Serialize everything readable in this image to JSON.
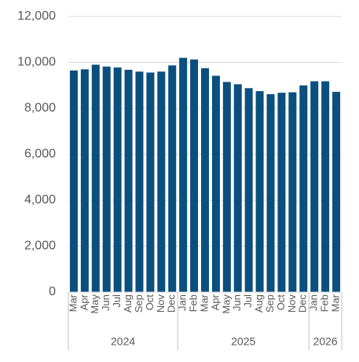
{
  "chart_data": {
    "type": "bar",
    "color": "#0b4f7f",
    "groups": [
      {
        "label": "2024",
        "categories": [
          "Mar",
          "Apr",
          "May",
          "Jun",
          "Jul",
          "Aug",
          "Sep",
          "Oct",
          "Nov",
          "Dec"
        ]
      },
      {
        "label": "2025",
        "categories": [
          "Jan",
          "Feb",
          "Mar",
          "Apr",
          "May",
          "Jun",
          "Jul",
          "Aug",
          "Sep",
          "Oct",
          "Nov",
          "Dec"
        ]
      },
      {
        "label": "2026",
        "categories": [
          "Jan",
          "Feb",
          "Mar"
        ]
      }
    ],
    "values": [
      9650,
      9700,
      9900,
      9820,
      9780,
      9680,
      9600,
      9560,
      9600,
      9870,
      10200,
      10130,
      9750,
      9420,
      9150,
      9050,
      8880,
      8750,
      8620,
      8680,
      8700,
      9000,
      9180,
      9180,
      8720
    ],
    "ylim": [
      0,
      12000
    ],
    "yticks": [
      {
        "value": 0,
        "label": "0"
      },
      {
        "value": 2000,
        "label": "2,000"
      },
      {
        "value": 4000,
        "label": "4,000"
      },
      {
        "value": 6000,
        "label": "6,000"
      },
      {
        "value": 8000,
        "label": "8,000"
      },
      {
        "value": 10000,
        "label": "10,000"
      },
      {
        "value": 12000,
        "label": "12,000"
      }
    ],
    "grid": true
  }
}
